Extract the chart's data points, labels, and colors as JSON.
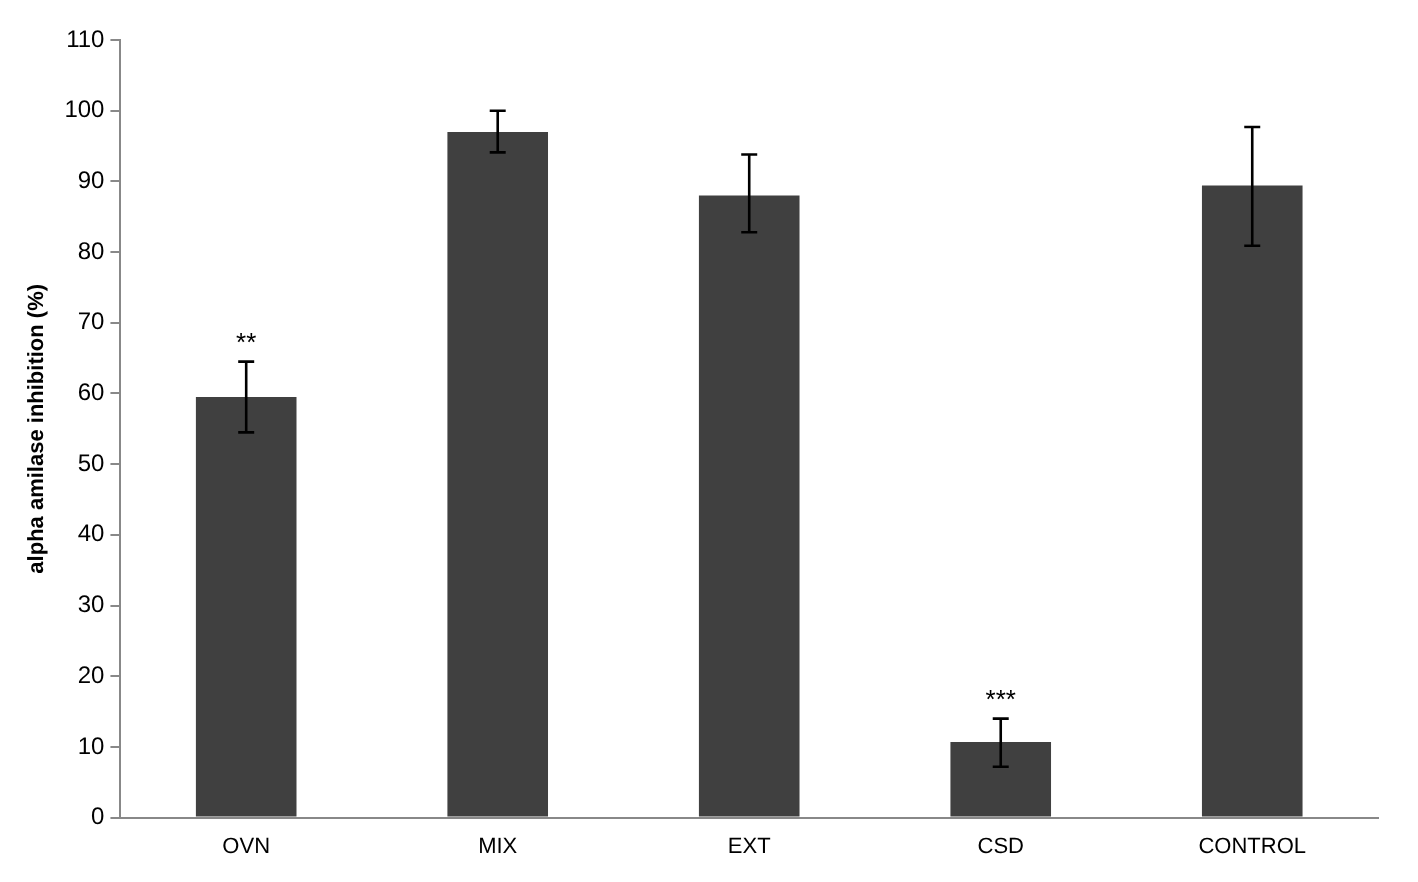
{
  "chart_data": {
    "type": "bar",
    "ylabel": "alpha amilase inhibition (%)",
    "categories": [
      "OVN",
      "MIX",
      "EXT",
      "CSD",
      "CONTROL"
    ],
    "values": [
      59.5,
      97,
      88,
      10.7,
      89.4
    ],
    "errors": [
      [
        54.5,
        64.5
      ],
      [
        94.1,
        100
      ],
      [
        82.8,
        93.8
      ],
      [
        7.2,
        14
      ],
      [
        80.9,
        97.7
      ]
    ],
    "color": "#404040",
    "ylim": [
      0,
      110
    ],
    "yticks": [
      0,
      10,
      20,
      30,
      40,
      50,
      60,
      70,
      80,
      90,
      100,
      110
    ],
    "grid": false,
    "legend": false,
    "value_labels": [
      "**",
      null,
      null,
      "***",
      null
    ]
  }
}
